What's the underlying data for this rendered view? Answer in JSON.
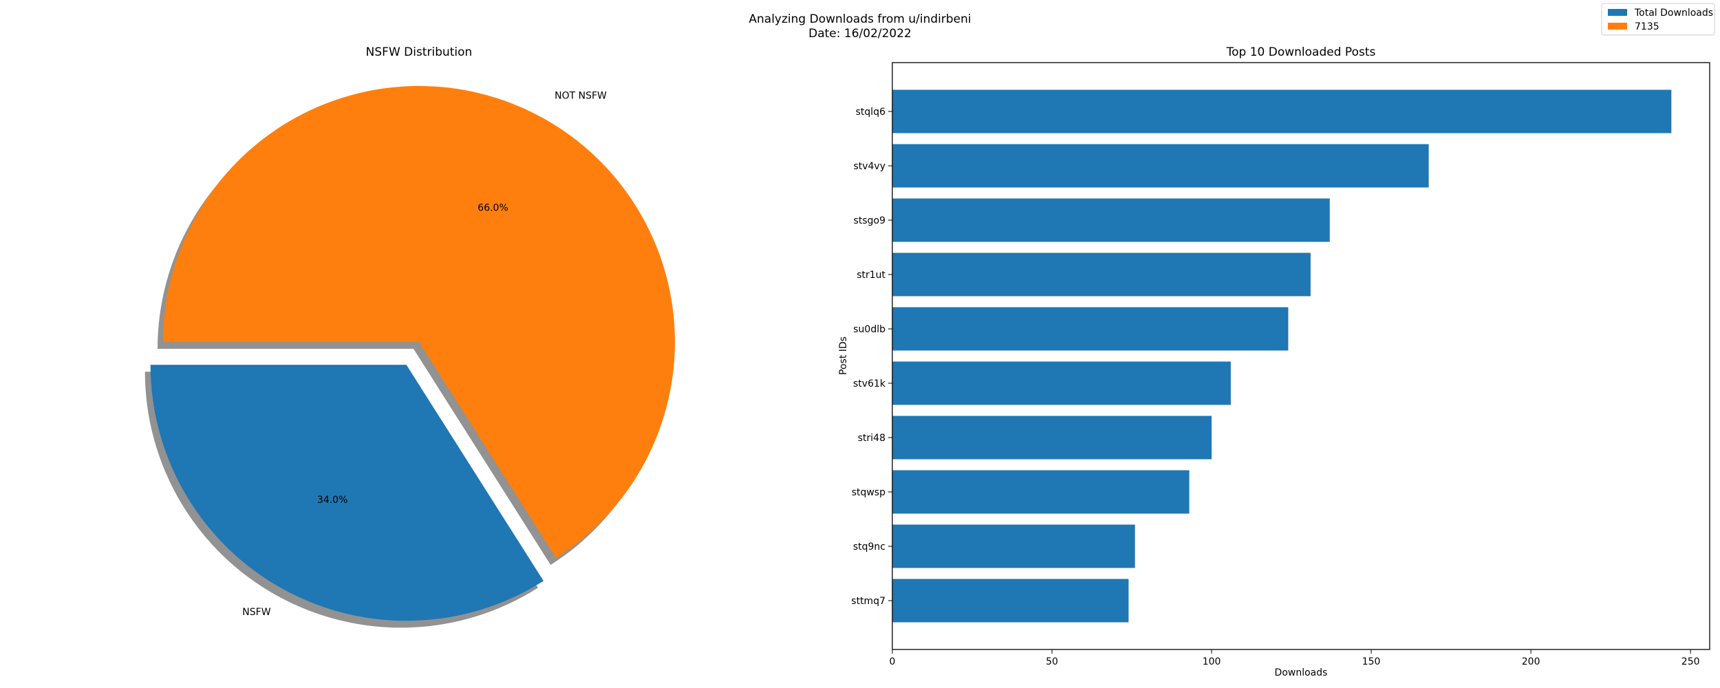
{
  "figure": {
    "suptitle_line1": "Analyzing Downloads from u/indirbeni",
    "suptitle_line2": "Date: 16/02/2022"
  },
  "legend": {
    "placement": "upper-right",
    "entries": [
      {
        "label": "Total Downloads",
        "color": "#1f77b4"
      },
      {
        "label": "7135",
        "color": "#ff7f0e"
      }
    ]
  },
  "chart_data": [
    {
      "type": "pie",
      "title": "NSFW Distribution",
      "labels": [
        "NSFW",
        "NOT NSFW"
      ],
      "values": [
        34.0,
        66.0
      ],
      "percent_labels": [
        "34.0%",
        "66.0%"
      ],
      "colors": [
        "#1f77b4",
        "#ff7f0e"
      ],
      "explode": [
        0.1,
        0
      ],
      "shadow": true
    },
    {
      "type": "bar",
      "orientation": "horizontal",
      "title": "Top 10 Downloaded Posts",
      "xlabel": "Downloads",
      "ylabel": "Post IDs",
      "categories": [
        "stqlq6",
        "stv4vy",
        "stsgo9",
        "str1ut",
        "su0dlb",
        "stv61k",
        "stri48",
        "stqwsp",
        "stq9nc",
        "sttmq7"
      ],
      "values": [
        244,
        168,
        137,
        131,
        124,
        106,
        100,
        93,
        76,
        74
      ],
      "xlim": [
        0,
        256
      ],
      "xticks": [
        0,
        50,
        100,
        150,
        200,
        250
      ],
      "color": "#1f77b4"
    }
  ]
}
